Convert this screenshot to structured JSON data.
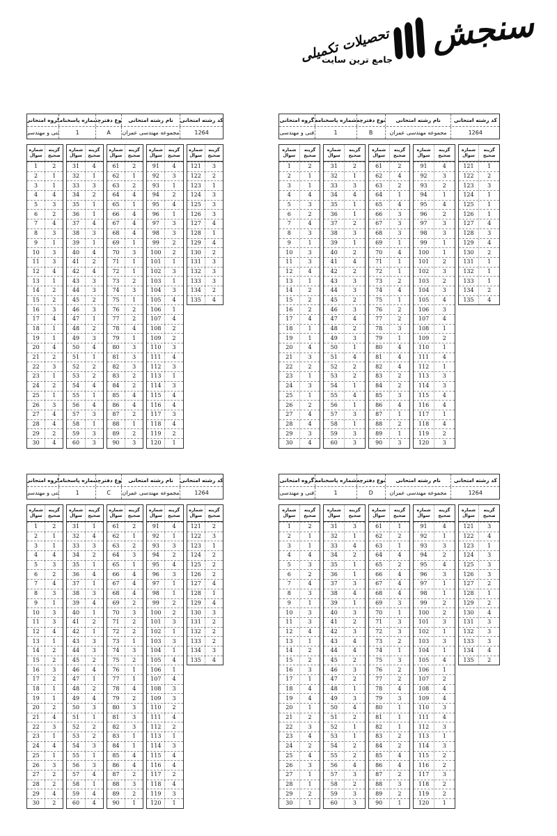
{
  "logo": {
    "brand": "سنجش",
    "tagline_prefix": "جامع ترین سایت",
    "tagline_calligraphy": "تحصیلات تکمیلی"
  },
  "labels": {
    "exam_code": "کد رشته امتحانی",
    "exam_name": "نام رشته امتحانی",
    "booklet_type": "نوع دفترچه",
    "answer_sheet_no": "شماره پاسخنامه",
    "exam_group": "گروه امتحانی",
    "question_no": "شماره\nسوال",
    "correct_option": "گزینه\nصحیح"
  },
  "tables": [
    {
      "position": "top-left",
      "exam_code": "1264",
      "exam_name": "مجموعه مهندسی عمران",
      "booklet_type": "A",
      "answer_sheet_no": "1",
      "exam_group": "فنی و مهندسی",
      "columns": [
        {
          "start": 1,
          "answers": [
            2,
            1,
            1,
            4,
            3,
            2,
            4,
            3,
            1,
            3,
            3,
            4,
            1,
            2,
            2,
            3,
            4,
            1,
            1,
            4,
            2,
            3,
            1,
            2,
            1,
            3,
            4,
            4,
            2,
            4
          ]
        },
        {
          "start": 31,
          "answers": [
            4,
            1,
            3,
            2,
            1,
            1,
            4,
            3,
            1,
            4,
            2,
            4,
            3,
            3,
            2,
            3,
            1,
            2,
            3,
            4,
            1,
            2,
            2,
            4,
            1,
            4,
            3,
            1,
            3,
            3
          ]
        },
        {
          "start": 61,
          "answers": [
            2,
            1,
            2,
            4,
            1,
            4,
            4,
            4,
            1,
            3,
            1,
            1,
            2,
            3,
            1,
            2,
            2,
            4,
            1,
            3,
            3,
            3,
            2,
            2,
            4,
            4,
            2,
            1,
            2,
            3
          ]
        },
        {
          "start": 91,
          "answers": [
            4,
            3,
            1,
            2,
            4,
            1,
            3,
            3,
            2,
            2,
            1,
            3,
            1,
            3,
            4,
            1,
            4,
            2,
            2,
            3,
            4,
            3,
            1,
            3,
            4,
            4,
            3,
            4,
            2,
            1
          ]
        },
        {
          "start": 121,
          "answers": [
            3,
            2,
            1,
            3,
            3,
            3,
            4,
            1,
            4,
            2,
            3,
            3,
            3,
            2,
            4
          ]
        }
      ]
    },
    {
      "position": "top-right",
      "exam_code": "1264",
      "exam_name": "مجموعه مهندسی عمران",
      "booklet_type": "B",
      "answer_sheet_no": "1",
      "exam_group": "فنی و مهندسی",
      "columns": [
        {
          "start": 1,
          "answers": [
            2,
            1,
            1,
            4,
            3,
            2,
            4,
            3,
            1,
            3,
            3,
            4,
            1,
            2,
            2,
            2,
            4,
            1,
            1,
            4,
            3,
            2,
            1,
            3,
            1,
            2,
            4,
            4,
            3,
            4
          ]
        },
        {
          "start": 31,
          "answers": [
            2,
            1,
            3,
            4,
            1,
            1,
            2,
            3,
            1,
            2,
            4,
            2,
            3,
            3,
            2,
            3,
            4,
            2,
            3,
            1,
            4,
            2,
            2,
            1,
            4,
            1,
            3,
            1,
            3,
            3
          ]
        },
        {
          "start": 61,
          "answers": [
            2,
            4,
            2,
            1,
            4,
            3,
            3,
            3,
            1,
            4,
            1,
            1,
            2,
            4,
            1,
            2,
            2,
            3,
            1,
            4,
            4,
            4,
            2,
            2,
            3,
            4,
            1,
            2,
            1,
            3
          ]
        },
        {
          "start": 91,
          "answers": [
            4,
            3,
            2,
            1,
            4,
            2,
            3,
            3,
            1,
            1,
            2,
            3,
            2,
            3,
            4,
            3,
            4,
            1,
            2,
            1,
            4,
            1,
            3,
            3,
            4,
            4,
            1,
            4,
            2,
            3
          ]
        },
        {
          "start": 121,
          "answers": [
            1,
            2,
            3,
            1,
            1,
            1,
            4,
            3,
            4,
            2,
            1,
            1,
            1,
            2,
            4
          ]
        }
      ]
    },
    {
      "position": "bottom-left",
      "exam_code": "1264",
      "exam_name": "مجموعه مهندسی عمران",
      "booklet_type": "C",
      "answer_sheet_no": "1",
      "exam_group": "فنی و مهندسی",
      "columns": [
        {
          "start": 1,
          "answers": [
            2,
            1,
            1,
            4,
            3,
            2,
            4,
            3,
            1,
            3,
            3,
            4,
            1,
            2,
            2,
            3,
            2,
            1,
            1,
            2,
            4,
            3,
            1,
            4,
            1,
            3,
            2,
            2,
            4,
            2
          ]
        },
        {
          "start": 31,
          "answers": [
            1,
            4,
            3,
            2,
            1,
            4,
            1,
            3,
            4,
            1,
            2,
            1,
            3,
            3,
            2,
            4,
            1,
            2,
            4,
            3,
            1,
            2,
            2,
            3,
            1,
            3,
            4,
            1,
            4,
            4
          ]
        },
        {
          "start": 61,
          "answers": [
            2,
            1,
            2,
            3,
            1,
            4,
            4,
            4,
            2,
            3,
            2,
            2,
            1,
            3,
            2,
            1,
            1,
            4,
            2,
            3,
            3,
            3,
            1,
            1,
            4,
            4,
            2,
            3,
            2,
            1
          ]
        },
        {
          "start": 91,
          "answers": [
            4,
            1,
            3,
            2,
            4,
            3,
            1,
            1,
            2,
            2,
            3,
            1,
            3,
            1,
            4,
            1,
            4,
            3,
            3,
            2,
            4,
            2,
            1,
            3,
            4,
            4,
            2,
            4,
            3,
            1
          ]
        },
        {
          "start": 121,
          "answers": [
            2,
            3,
            1,
            2,
            2,
            2,
            4,
            1,
            4,
            3,
            2,
            2,
            2,
            3,
            4
          ]
        }
      ]
    },
    {
      "position": "bottom-right",
      "exam_code": "1264",
      "exam_name": "مجموعه مهندسی عمران",
      "booklet_type": "D",
      "answer_sheet_no": "1",
      "exam_group": "فنی و مهندسی",
      "columns": [
        {
          "start": 1,
          "answers": [
            2,
            1,
            1,
            4,
            3,
            2,
            4,
            3,
            1,
            3,
            3,
            4,
            1,
            2,
            2,
            3,
            1,
            4,
            4,
            1,
            2,
            3,
            4,
            2,
            4,
            3,
            1,
            1,
            2,
            1
          ]
        },
        {
          "start": 31,
          "answers": [
            3,
            1,
            4,
            2,
            1,
            1,
            3,
            4,
            1,
            3,
            2,
            3,
            4,
            4,
            2,
            3,
            2,
            1,
            3,
            4,
            2,
            1,
            1,
            2,
            2,
            4,
            3,
            2,
            3,
            3
          ]
        },
        {
          "start": 61,
          "answers": [
            1,
            2,
            1,
            4,
            2,
            4,
            4,
            4,
            3,
            1,
            3,
            3,
            2,
            1,
            3,
            2,
            2,
            4,
            3,
            1,
            1,
            1,
            2,
            2,
            4,
            4,
            2,
            3,
            2,
            1
          ]
        },
        {
          "start": 91,
          "answers": [
            4,
            1,
            3,
            2,
            4,
            3,
            1,
            1,
            2,
            2,
            3,
            1,
            3,
            1,
            4,
            1,
            2,
            4,
            4,
            3,
            4,
            3,
            1,
            3,
            2,
            2,
            3,
            2,
            2,
            1
          ]
        },
        {
          "start": 121,
          "answers": [
            3,
            4,
            1,
            3,
            3,
            3,
            2,
            1,
            2,
            4,
            3,
            3,
            3,
            4,
            2
          ]
        }
      ]
    }
  ]
}
